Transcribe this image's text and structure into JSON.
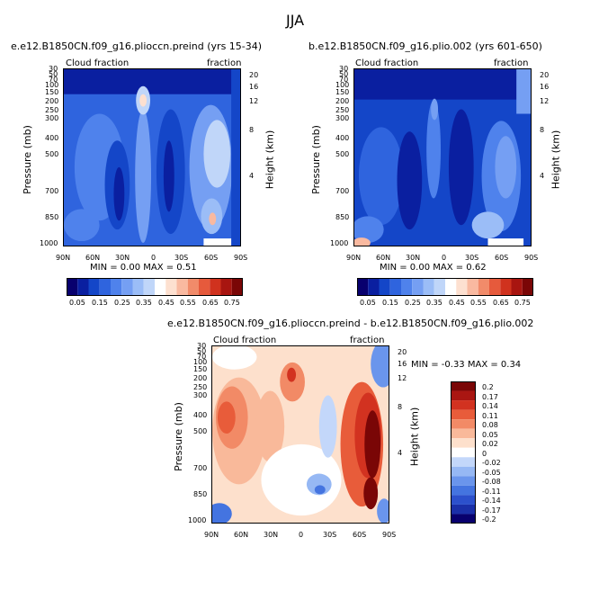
{
  "figure": {
    "title": "JJA",
    "colors": {
      "seq_scale": [
        "#08006e",
        "#0a1fa0",
        "#1446c8",
        "#2f64de",
        "#4f82ec",
        "#759ff3",
        "#9bbdf7",
        "#c0d6f9",
        "#ffffff",
        "#fde0d0",
        "#f9b9a0",
        "#f18b6a",
        "#e65a3c",
        "#d0321e",
        "#a81510",
        "#7a0606"
      ],
      "diff_scale": [
        "#08006e",
        "#1a2fa8",
        "#2c50cc",
        "#4474e0",
        "#6a95ec",
        "#96b8f4",
        "#c3d7fa",
        "#ffffff",
        "#fde0cc",
        "#f9b99a",
        "#f28a66",
        "#e85c3a",
        "#d23220",
        "#aa1612",
        "#7a0606"
      ]
    }
  },
  "chart_data": [
    {
      "type": "heatmap",
      "title": "e.e12.B1850CN.f09_g16.plioccn.preind (yrs 15-34)",
      "left_label": "Cloud fraction",
      "right_label": "fraction",
      "xlabel": "",
      "ylabel": "Pressure (mb)",
      "y2label": "Height (km)",
      "x_ticks": [
        "90N",
        "60N",
        "30N",
        "0",
        "30S",
        "60S",
        "90S"
      ],
      "y_ticks": [
        "30",
        "50",
        "70",
        "100",
        "150",
        "200",
        "250",
        "300",
        "400",
        "500",
        "700",
        "850",
        "1000"
      ],
      "y2_ticks": [
        "20",
        "16",
        "12",
        "8",
        "4"
      ],
      "stats": "MIN =   0.00   MAX =   0.51",
      "ylim": [
        1000,
        30
      ],
      "xlim": [
        90,
        -90
      ],
      "colorbar_labels": [
        "0.05",
        "0.15",
        "0.25",
        "0.35",
        "0.45",
        "0.55",
        "0.65",
        "0.75"
      ]
    },
    {
      "type": "heatmap",
      "title": "b.e12.B1850CN.f09_g16.plio.002 (yrs 601-650)",
      "left_label": "Cloud fraction",
      "right_label": "fraction",
      "xlabel": "",
      "ylabel": "Pressure (mb)",
      "y2label": "Height (km)",
      "x_ticks": [
        "90N",
        "60N",
        "30N",
        "0",
        "30S",
        "60S",
        "90S"
      ],
      "y_ticks": [
        "30",
        "50",
        "70",
        "100",
        "150",
        "200",
        "250",
        "300",
        "400",
        "500",
        "700",
        "850",
        "1000"
      ],
      "y2_ticks": [
        "20",
        "16",
        "12",
        "8",
        "4"
      ],
      "stats": "MIN =   0.00   MAX =   0.62",
      "ylim": [
        1000,
        30
      ],
      "xlim": [
        90,
        -90
      ],
      "colorbar_labels": [
        "0.05",
        "0.15",
        "0.25",
        "0.35",
        "0.45",
        "0.55",
        "0.65",
        "0.75"
      ]
    },
    {
      "type": "heatmap",
      "title": "e.e12.B1850CN.f09_g16.plioccn.preind - b.e12.B1850CN.f09_g16.plio.002",
      "left_label": "Cloud fraction",
      "right_label": "fraction",
      "xlabel": "",
      "ylabel": "Pressure (mb)",
      "y2label": "Height (km)",
      "x_ticks": [
        "90N",
        "60N",
        "30N",
        "0",
        "30S",
        "60S",
        "90S"
      ],
      "y_ticks": [
        "30",
        "50",
        "70",
        "100",
        "150",
        "200",
        "250",
        "300",
        "400",
        "500",
        "700",
        "850",
        "1000"
      ],
      "y2_ticks": [
        "20",
        "16",
        "12",
        "8",
        "4"
      ],
      "stats": "MIN =   -0.33   MAX =   0.34",
      "ylim": [
        1000,
        30
      ],
      "xlim": [
        90,
        -90
      ],
      "colorbar_labels": [
        "0.2",
        "0.17",
        "0.14",
        "0.11",
        "0.08",
        "0.05",
        "0.02",
        "0",
        "-0.02",
        "-0.05",
        "-0.08",
        "-0.11",
        "-0.14",
        "-0.17",
        "-0.2"
      ]
    }
  ]
}
